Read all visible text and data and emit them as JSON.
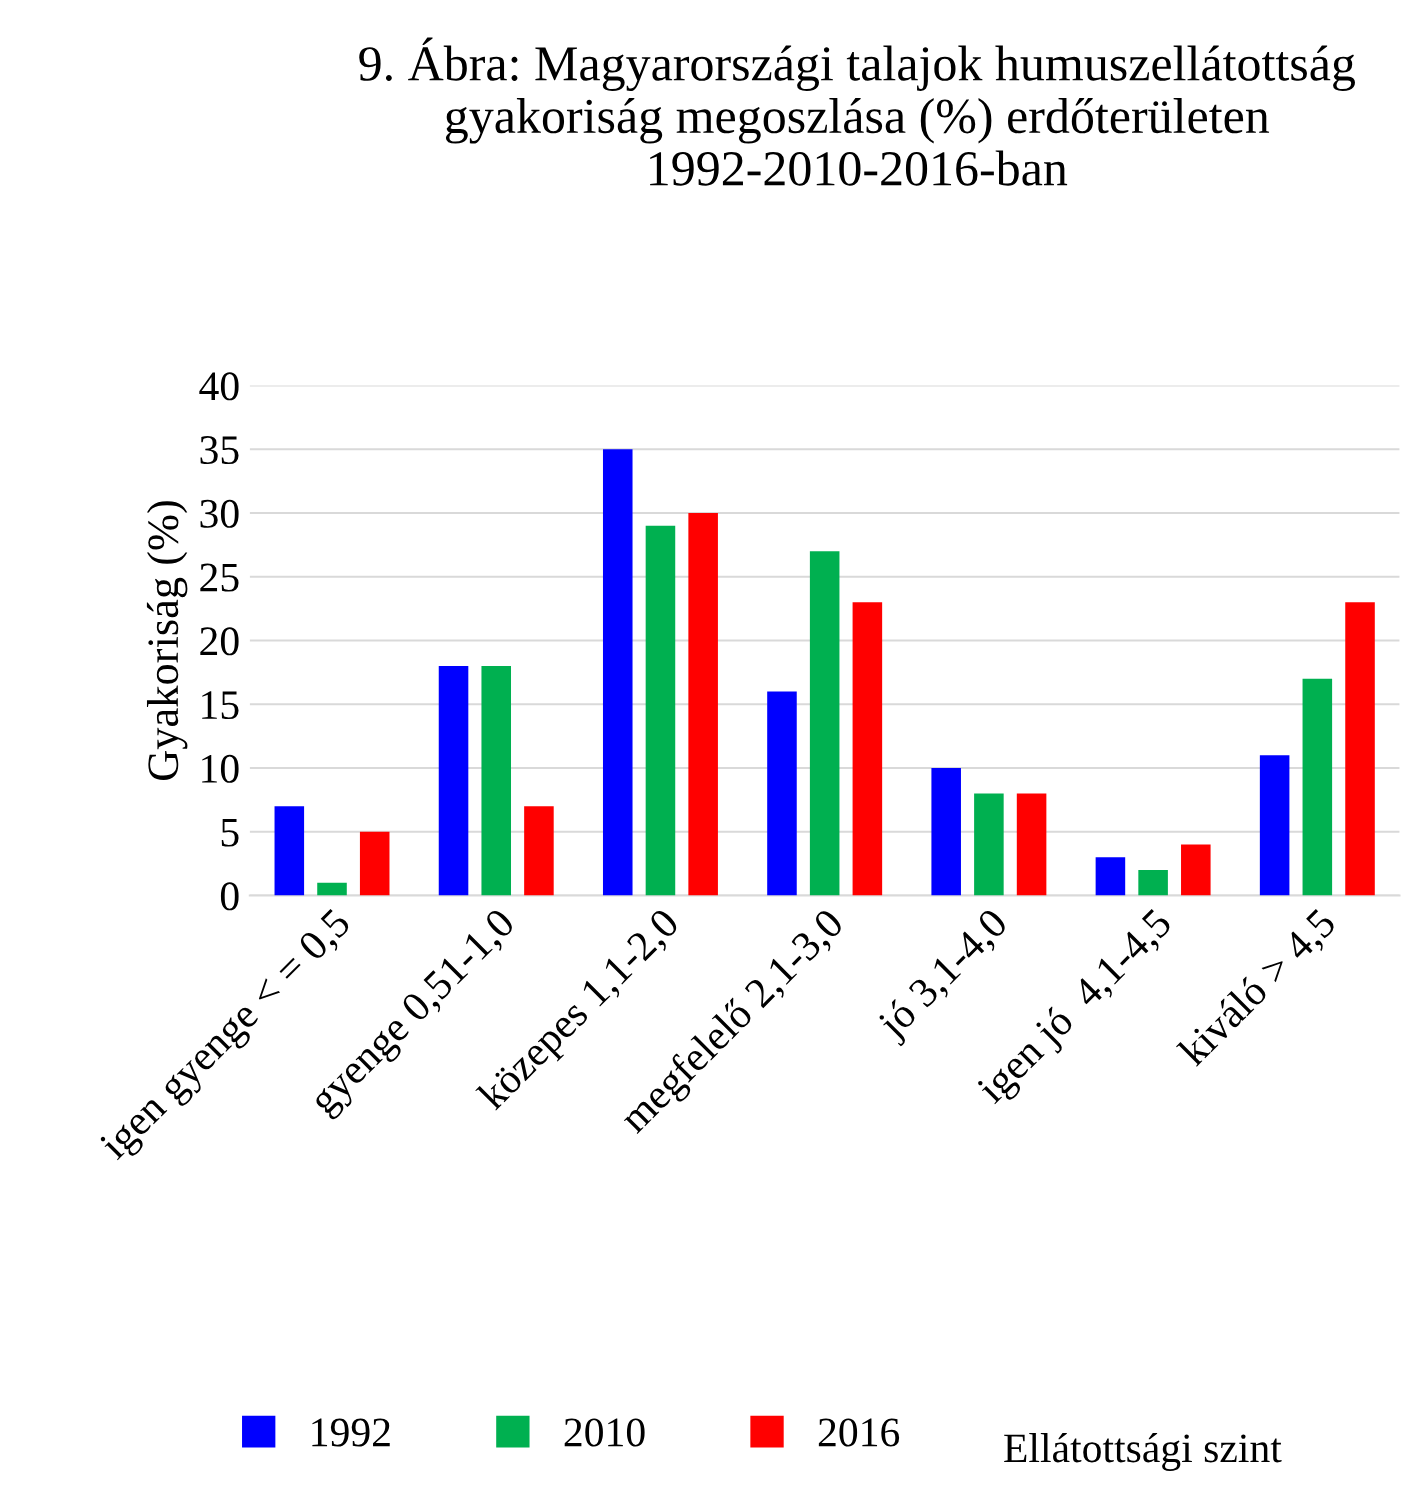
{
  "chart_data": {
    "type": "bar",
    "title": "9. Ábra: Magyarországi talajok humuszellátottság\ngyakoriság megoszlása (%) erdőterületen\n1992-2010-2016-ban",
    "annotations": [
      "Ellátottsági szint"
    ],
    "ylabel": "Gyakoriság (%)",
    "categories": [
      "igen gyenge < = 0,5",
      "gyenge 0,51-1,0",
      "közepes 1,1-2,0",
      "megfelelő 2,1-3,0",
      "jó 3,1-4,0",
      "igen jó  4,1-4,5",
      "kiváló > 4,5"
    ],
    "series": [
      {
        "name": "1992",
        "color": "#0000ff",
        "values": [
          7,
          18,
          35,
          16,
          10,
          3,
          11
        ]
      },
      {
        "name": "2010",
        "color": "#00b050",
        "values": [
          1,
          18,
          29,
          27,
          8,
          2,
          17
        ]
      },
      {
        "name": "2016",
        "color": "#ff0000",
        "values": [
          5,
          7,
          30,
          23,
          8,
          4,
          23
        ]
      }
    ],
    "ylim": [
      0,
      40
    ],
    "yticks": [
      0,
      5,
      10,
      15,
      20,
      25,
      30,
      35,
      40
    ],
    "grid": "y",
    "legend": "bottom"
  }
}
